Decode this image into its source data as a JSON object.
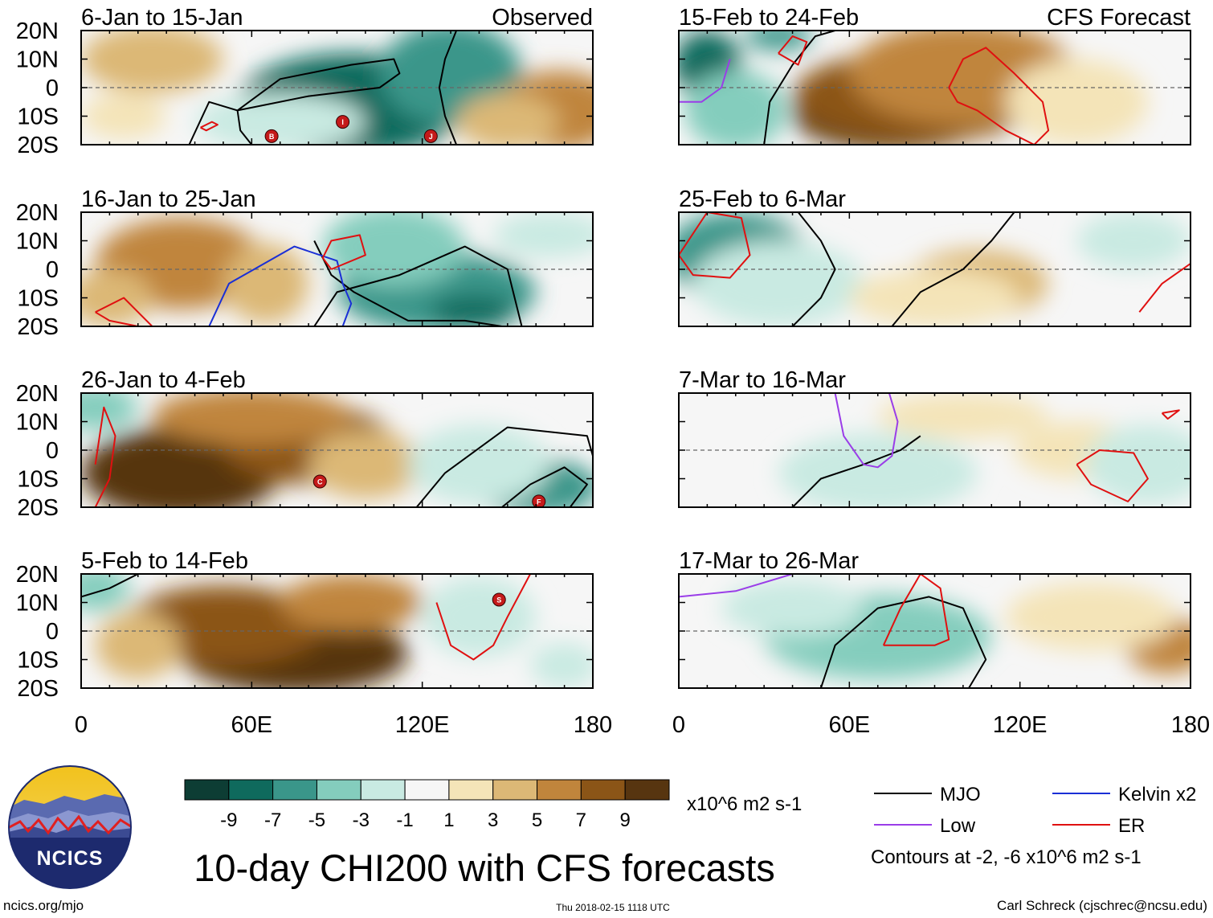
{
  "chart_data": {
    "type": "heatmap",
    "title": "10-day CHI200 with CFS forecasts",
    "variable": "CHI200 (200-hPa velocity potential) anomaly",
    "units": "x10^6 m2 s-1",
    "xlim": [
      0,
      180
    ],
    "ylim": [
      -20,
      20
    ],
    "x_ticks": [
      "0",
      "60E",
      "120E",
      "180"
    ],
    "y_ticks": [
      "20N",
      "10N",
      "0",
      "10S",
      "20S"
    ],
    "colorbar": {
      "ticks": [
        "-9",
        "-7",
        "-5",
        "-3",
        "-1",
        "1",
        "3",
        "5",
        "7",
        "9"
      ],
      "levels": [
        -11,
        -9,
        -7,
        -5,
        -3,
        -1,
        1,
        3,
        5,
        7,
        9,
        11
      ],
      "colors": [
        "#0d3d34",
        "#0f6a5d",
        "#3a968a",
        "#84cdbd",
        "#c9eae2",
        "#f6f6f6",
        "#f4e4b8",
        "#dcb876",
        "#c0853c",
        "#8b5517",
        "#573510"
      ]
    },
    "panels": [
      {
        "period": "6-Jan to 15-Jan",
        "source": "Observed",
        "blobs": [
          {
            "lon": 95,
            "lat": -6,
            "value": -8,
            "rx": 40,
            "ry": 18
          },
          {
            "lon": 130,
            "lat": 5,
            "value": -6,
            "rx": 25,
            "ry": 18
          },
          {
            "lon": 70,
            "lat": -12,
            "value": -3,
            "rx": 30,
            "ry": 10
          },
          {
            "lon": 168,
            "lat": -8,
            "value": 6,
            "rx": 22,
            "ry": 14
          },
          {
            "lon": 150,
            "lat": -12,
            "value": 3,
            "rx": 18,
            "ry": 10
          },
          {
            "lon": 25,
            "lat": 10,
            "value": 4,
            "rx": 25,
            "ry": 12
          },
          {
            "lon": 15,
            "lat": -10,
            "value": 2,
            "rx": 15,
            "ry": 8
          }
        ],
        "cyclones": [
          {
            "lon": 67,
            "lat": -17,
            "label": "B"
          },
          {
            "lon": 92,
            "lat": -12,
            "label": "I"
          },
          {
            "lon": 123,
            "lat": -17,
            "label": "J"
          }
        ],
        "contours": [
          {
            "wave": "MJO",
            "lon": [
              38,
              45,
              55,
              80,
              105,
              112,
              110,
              95,
              70,
              55,
              56,
              60
            ],
            "lat": [
              -20,
              -5,
              -8,
              -3,
              0,
              5,
              10,
              8,
              3,
              -8,
              -15,
              -20
            ]
          },
          {
            "wave": "MJO",
            "lon": [
              132,
              128,
              126,
              128,
              132
            ],
            "lat": [
              20,
              10,
              0,
              -10,
              -20
            ]
          },
          {
            "wave": "ER",
            "lon": [
              42,
              46,
              48,
              44,
              42
            ],
            "lat": [
              -14,
              -12,
              -13,
              -15,
              -14
            ]
          }
        ]
      },
      {
        "period": "16-Jan to 25-Jan",
        "source": "",
        "blobs": [
          {
            "lon": 125,
            "lat": -8,
            "value": -7,
            "rx": 35,
            "ry": 14
          },
          {
            "lon": 138,
            "lat": -15,
            "value": -9,
            "rx": 15,
            "ry": 6
          },
          {
            "lon": 110,
            "lat": 8,
            "value": -4,
            "rx": 25,
            "ry": 14
          },
          {
            "lon": 165,
            "lat": 12,
            "value": -2,
            "rx": 20,
            "ry": 8
          },
          {
            "lon": 35,
            "lat": 2,
            "value": 5,
            "rx": 30,
            "ry": 16
          },
          {
            "lon": 10,
            "lat": -10,
            "value": 4,
            "rx": 15,
            "ry": 10
          },
          {
            "lon": 65,
            "lat": -5,
            "value": 3,
            "rx": 15,
            "ry": 14
          }
        ],
        "cyclones": [],
        "contours": [
          {
            "wave": "MJO",
            "lon": [
              82,
              90,
              112,
              135,
              150,
              155,
              148,
              135,
              115,
              96,
              88,
              82
            ],
            "lat": [
              -20,
              -8,
              -2,
              8,
              0,
              -20,
              -20,
              -18,
              -18,
              -8,
              -2,
              10
            ]
          },
          {
            "wave": "Kelvin x2",
            "lon": [
              45,
              52,
              75,
              90,
              92,
              95,
              92
            ],
            "lat": [
              -20,
              -5,
              8,
              3,
              -5,
              -12,
              -20
            ]
          },
          {
            "wave": "ER",
            "lon": [
              5,
              15,
              25,
              20,
              10,
              5
            ],
            "lat": [
              -15,
              -10,
              -20,
              -20,
              -18,
              -15
            ]
          },
          {
            "wave": "ER",
            "lon": [
              88,
              100,
              98,
              88,
              85,
              88
            ],
            "lat": [
              0,
              5,
              12,
              10,
              4,
              0
            ]
          }
        ]
      },
      {
        "period": "26-Jan to 4-Feb",
        "source": "",
        "blobs": [
          {
            "lon": 35,
            "lat": -8,
            "value": 10,
            "rx": 35,
            "ry": 16
          },
          {
            "lon": 80,
            "lat": 2,
            "value": 7,
            "rx": 30,
            "ry": 14
          },
          {
            "lon": 60,
            "lat": 12,
            "value": 5,
            "rx": 35,
            "ry": 10
          },
          {
            "lon": 100,
            "lat": -5,
            "value": 3,
            "rx": 20,
            "ry": 12
          },
          {
            "lon": 160,
            "lat": -13,
            "value": -7,
            "rx": 22,
            "ry": 10
          },
          {
            "lon": 140,
            "lat": -5,
            "value": -3,
            "rx": 25,
            "ry": 14
          },
          {
            "lon": 5,
            "lat": 15,
            "value": -5,
            "rx": 15,
            "ry": 8
          }
        ],
        "cyclones": [
          {
            "lon": 84,
            "lat": -11,
            "label": "C"
          },
          {
            "lon": 161,
            "lat": -18,
            "label": "F"
          }
        ],
        "contours": [
          {
            "wave": "MJO",
            "lon": [
              118,
              128,
              150,
              178,
              180
            ],
            "lat": [
              -20,
              -8,
              8,
              5,
              -2
            ]
          },
          {
            "wave": "MJO",
            "lon": [
              148,
              158,
              170,
              178,
              172,
              160,
              148
            ],
            "lat": [
              -20,
              -12,
              -6,
              -12,
              -20,
              -20,
              -20
            ]
          },
          {
            "wave": "ER",
            "lon": [
              5,
              10,
              12,
              8,
              5
            ],
            "lat": [
              -20,
              -10,
              5,
              15,
              -5
            ]
          }
        ]
      },
      {
        "period": "5-Feb to 14-Feb",
        "source": "",
        "blobs": [
          {
            "lon": 75,
            "lat": -8,
            "value": 10,
            "rx": 40,
            "ry": 14
          },
          {
            "lon": 50,
            "lat": 2,
            "value": 7,
            "rx": 35,
            "ry": 14
          },
          {
            "lon": 95,
            "lat": 10,
            "value": 5,
            "rx": 25,
            "ry": 10
          },
          {
            "lon": 20,
            "lat": -5,
            "value": 3,
            "rx": 15,
            "ry": 12
          },
          {
            "lon": 140,
            "lat": 5,
            "value": -2,
            "rx": 20,
            "ry": 14
          },
          {
            "lon": 170,
            "lat": -12,
            "value": -3,
            "rx": 12,
            "ry": 8
          },
          {
            "lon": 5,
            "lat": 15,
            "value": -4,
            "rx": 12,
            "ry": 8
          }
        ],
        "cyclones": [
          {
            "lon": 147,
            "lat": 11,
            "label": "S"
          }
        ],
        "contours": [
          {
            "wave": "ER",
            "lon": [
              125,
              130,
              138,
              145,
              150,
              158
            ],
            "lat": [
              10,
              -5,
              -10,
              -5,
              5,
              20
            ]
          },
          {
            "wave": "MJO",
            "lon": [
              0,
              10,
              20
            ],
            "lat": [
              12,
              15,
              20
            ]
          }
        ]
      },
      {
        "period": "15-Feb to 24-Feb",
        "source": "CFS Forecast",
        "blobs": [
          {
            "lon": 75,
            "lat": -10,
            "value": 10,
            "rx": 35,
            "ry": 12
          },
          {
            "lon": 85,
            "lat": -3,
            "value": 7,
            "rx": 45,
            "ry": 16
          },
          {
            "lon": 100,
            "lat": 5,
            "value": 5,
            "rx": 40,
            "ry": 18
          },
          {
            "lon": 140,
            "lat": -5,
            "value": 2,
            "rx": 25,
            "ry": 15
          },
          {
            "lon": 10,
            "lat": 8,
            "value": -8,
            "rx": 12,
            "ry": 12
          },
          {
            "lon": 20,
            "lat": -8,
            "value": -5,
            "rx": 18,
            "ry": 14
          },
          {
            "lon": 35,
            "lat": 18,
            "value": -7,
            "rx": 12,
            "ry": 5
          }
        ],
        "cyclones": [],
        "contours": [
          {
            "wave": "MJO",
            "lon": [
              30,
              32,
              40,
              48,
              55
            ],
            "lat": [
              -20,
              -5,
              8,
              18,
              20
            ]
          },
          {
            "wave": "ER",
            "lon": [
              95,
              100,
              108,
              118,
              128,
              130,
              125,
              115,
              105,
              98,
              95
            ],
            "lat": [
              0,
              10,
              14,
              5,
              -5,
              -15,
              -20,
              -15,
              -8,
              -5,
              0
            ]
          },
          {
            "wave": "ER",
            "lon": [
              35,
              40,
              45,
              42,
              35
            ],
            "lat": [
              12,
              18,
              16,
              8,
              12
            ]
          },
          {
            "wave": "Low",
            "lon": [
              0,
              8,
              15,
              18
            ],
            "lat": [
              -5,
              -5,
              0,
              10
            ]
          }
        ]
      },
      {
        "period": "25-Feb to 6-Mar",
        "source": "",
        "blobs": [
          {
            "lon": 18,
            "lat": 2,
            "value": -9,
            "rx": 15,
            "ry": 10
          },
          {
            "lon": 20,
            "lat": 5,
            "value": -6,
            "rx": 25,
            "ry": 15
          },
          {
            "lon": 35,
            "lat": -5,
            "value": -3,
            "rx": 30,
            "ry": 15
          },
          {
            "lon": 105,
            "lat": -5,
            "value": 4,
            "rx": 25,
            "ry": 12
          },
          {
            "lon": 90,
            "lat": -10,
            "value": 2,
            "rx": 30,
            "ry": 10
          },
          {
            "lon": 160,
            "lat": 10,
            "value": -2,
            "rx": 20,
            "ry": 10
          }
        ],
        "cyclones": [],
        "contours": [
          {
            "wave": "MJO",
            "lon": [
              40,
              50,
              55,
              50,
              42
            ],
            "lat": [
              -20,
              -10,
              0,
              10,
              20
            ]
          },
          {
            "wave": "MJO",
            "lon": [
              75,
              85,
              100,
              110,
              118
            ],
            "lat": [
              -20,
              -8,
              0,
              10,
              20
            ]
          },
          {
            "wave": "ER",
            "lon": [
              0,
              10,
              22,
              25,
              18,
              5,
              0
            ],
            "lat": [
              5,
              20,
              18,
              5,
              -3,
              -2,
              5
            ]
          },
          {
            "wave": "ER",
            "lon": [
              162,
              170,
              180
            ],
            "lat": [
              -15,
              -5,
              2
            ]
          }
        ]
      },
      {
        "period": "7-Mar to 16-Mar",
        "source": "",
        "blobs": [
          {
            "lon": 60,
            "lat": -10,
            "value": -5,
            "rx": 20,
            "ry": 10
          },
          {
            "lon": 70,
            "lat": -8,
            "value": -3,
            "rx": 35,
            "ry": 14
          },
          {
            "lon": 100,
            "lat": 12,
            "value": 2,
            "rx": 30,
            "ry": 8
          },
          {
            "lon": 140,
            "lat": 0,
            "value": 2,
            "rx": 22,
            "ry": 10
          },
          {
            "lon": 165,
            "lat": -5,
            "value": -2,
            "rx": 22,
            "ry": 14
          }
        ],
        "cyclones": [],
        "contours": [
          {
            "wave": "MJO",
            "lon": [
              40,
              50,
              65,
              78,
              85
            ],
            "lat": [
              -20,
              -10,
              -5,
              0,
              5
            ]
          },
          {
            "wave": "Low",
            "lon": [
              55,
              58,
              65,
              70,
              75,
              77,
              74
            ],
            "lat": [
              20,
              5,
              -5,
              -6,
              -2,
              10,
              20
            ]
          },
          {
            "wave": "ER",
            "lon": [
              140,
              148,
              160,
              165,
              158,
              145,
              140
            ],
            "lat": [
              -5,
              0,
              -1,
              -10,
              -18,
              -12,
              -5
            ]
          },
          {
            "wave": "ER",
            "lon": [
              170,
              176,
              172,
              170
            ],
            "lat": [
              13,
              14,
              11,
              13
            ]
          }
        ]
      },
      {
        "period": "17-Mar to 26-Mar",
        "source": "",
        "blobs": [
          {
            "lon": 70,
            "lat": -5,
            "value": -7,
            "rx": 20,
            "ry": 10
          },
          {
            "lon": 70,
            "lat": -2,
            "value": -4,
            "rx": 40,
            "ry": 15
          },
          {
            "lon": 40,
            "lat": 8,
            "value": -2,
            "rx": 25,
            "ry": 10
          },
          {
            "lon": 172,
            "lat": -5,
            "value": 6,
            "rx": 15,
            "ry": 10
          },
          {
            "lon": 145,
            "lat": 5,
            "value": 2,
            "rx": 30,
            "ry": 12
          }
        ],
        "cyclones": [],
        "contours": [
          {
            "wave": "MJO",
            "lon": [
              50,
              55,
              70,
              88,
              100,
              108,
              102
            ],
            "lat": [
              -20,
              -5,
              8,
              12,
              8,
              -10,
              -20
            ]
          },
          {
            "wave": "Low",
            "lon": [
              0,
              20,
              40
            ],
            "lat": [
              12,
              14,
              20
            ]
          },
          {
            "wave": "ER",
            "lon": [
              72,
              78,
              85,
              92,
              95,
              90,
              72
            ],
            "lat": [
              -5,
              8,
              20,
              15,
              -3,
              -5,
              -5
            ]
          }
        ]
      }
    ]
  },
  "legend": {
    "units": "x10^6 m2 s-1",
    "items": [
      {
        "label": "MJO",
        "color": "#000000"
      },
      {
        "label": "Kelvin x2",
        "color": "#1a2fd6"
      },
      {
        "label": "Low",
        "color": "#9a3de8"
      },
      {
        "label": "ER",
        "color": "#e01010"
      }
    ],
    "note": "Contours at -2, -6 x10^6 m2 s-1"
  },
  "footer": {
    "site": "ncics.org/mjo",
    "timestamp": "Thu 2018-02-15 1118 UTC",
    "author": "Carl Schreck (cjschrec@ncsu.edu)",
    "logo_text": "NCICS"
  }
}
